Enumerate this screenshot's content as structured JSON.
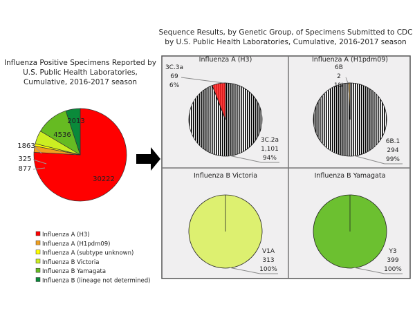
{
  "chart_data": [
    {
      "type": "pie",
      "title": "Influenza Positive Specimens Reported by U.S. Public Health Laboratories, Cumulative, 2016-2017 season",
      "title_lines": [
        "Influenza Positive Specimens Reported by",
        "U.S. Public Health Laboratories,",
        "Cumulative, 2016-2017 season"
      ],
      "legend_position": "bottom",
      "slices": [
        {
          "name": "Influenza A (H3)",
          "value": 30222,
          "label": "30222",
          "color": "#ff0000"
        },
        {
          "name": "Influenza A (H1pdm09)",
          "value": 877,
          "label": "877",
          "color": "#f0a020"
        },
        {
          "name": "Influenza A (subtype unknown)",
          "value": 325,
          "label": "325",
          "color": "#ffff00"
        },
        {
          "name": "Influenza B Victoria",
          "value": 1863,
          "label": "1863",
          "color": "#ccee22"
        },
        {
          "name": "Influenza B Yamagata",
          "value": 4536,
          "label": "4536",
          "color": "#66bb22"
        },
        {
          "name": "Influenza B (lineage not determined)",
          "value": 2013,
          "label": "2013",
          "color": "#0a8a3a"
        }
      ]
    },
    {
      "type": "pie",
      "title": "Sequence Results, by Genetic Group, of Specimens Submitted to CDC by U.S. Public Health Laboratories, Cumulative, 2016-2017 season",
      "title_lines": [
        "Sequence Results, by Genetic Group, of Specimens Submitted to CDC",
        "by U.S. Public Health Laboratories, Cumulative, 2016-2017 season"
      ],
      "panels": [
        {
          "title": "Influenza A (H3)",
          "color": "#ff2020",
          "slices": [
            {
              "name": "3C.2a",
              "value": 1101,
              "count": "1,101",
              "pct": "94%"
            },
            {
              "name": "3C.3a",
              "value": 69,
              "count": "69",
              "pct": "6%"
            }
          ]
        },
        {
          "title": "Influenza A (H1pdm09)",
          "color": "#f5c060",
          "slices": [
            {
              "name": "6B.1",
              "value": 294,
              "count": "294",
              "pct": "99%"
            },
            {
              "name": "6B",
              "value": 2,
              "count": "2",
              "pct": "1%"
            }
          ]
        },
        {
          "title": "Influenza B Victoria",
          "color": "#ddf070",
          "slices": [
            {
              "name": "V1A",
              "value": 313,
              "count": "313",
              "pct": "100%"
            }
          ]
        },
        {
          "title": "Influenza B Yamagata",
          "color": "#6cc030",
          "slices": [
            {
              "name": "Y3",
              "value": 399,
              "count": "399",
              "pct": "100%"
            }
          ]
        }
      ]
    }
  ]
}
